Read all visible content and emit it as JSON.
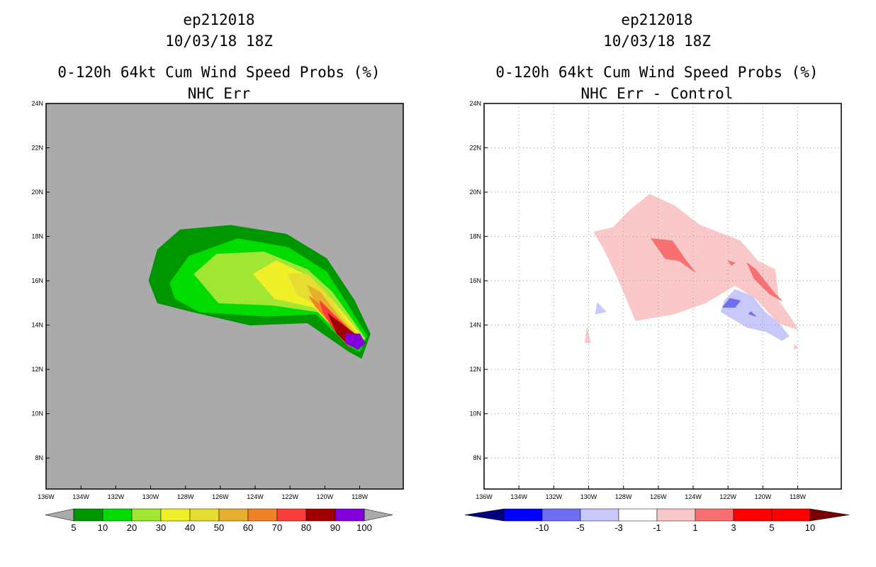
{
  "chart_data": [
    {
      "type": "heatmap",
      "title_lines": [
        "ep212018",
        "10/03/18 18Z",
        "0-120h 64kt Cum Wind Speed Probs (%)",
        "NHC Err"
      ],
      "xlabel": "",
      "ylabel": "",
      "x_range": [
        -136,
        -115.5
      ],
      "y_range": [
        6.6,
        24
      ],
      "x_ticks": [
        "136W",
        "134W",
        "132W",
        "130W",
        "128W",
        "126W",
        "124W",
        "122W",
        "120W",
        "118W"
      ],
      "y_ticks": [
        "8N",
        "10N",
        "12N",
        "14N",
        "16N",
        "18N",
        "20N",
        "22N",
        "24N"
      ],
      "background": "#aaaaaa",
      "grid": false,
      "colorbar": {
        "labels": [
          "5",
          "10",
          "20",
          "30",
          "40",
          "50",
          "60",
          "70",
          "80",
          "90",
          "100"
        ],
        "colors": [
          "#009600",
          "#00dc00",
          "#a0e632",
          "#f0f028",
          "#e6dc32",
          "#e6af2d",
          "#f08228",
          "#fa3c3c",
          "#a00000",
          "#8200dc"
        ],
        "end_color": "#aaaaaa"
      },
      "contours": [
        {
          "level": 5,
          "color": "#009600",
          "points": [
            [
              -130.1,
              16
            ],
            [
              -129.6,
              17.4
            ],
            [
              -128.3,
              18.3
            ],
            [
              -125.4,
              18.5
            ],
            [
              -122.2,
              18.1
            ],
            [
              -119.9,
              17
            ],
            [
              -118.3,
              15.1
            ],
            [
              -117.4,
              13.6
            ],
            [
              -117.9,
              12.5
            ],
            [
              -118.6,
              12.8
            ],
            [
              -121,
              14.1
            ],
            [
              -124.3,
              14
            ],
            [
              -127.6,
              14.6
            ],
            [
              -129.6,
              15
            ]
          ]
        },
        {
          "level": 10,
          "color": "#00dc00",
          "points": [
            [
              -128.9,
              15.9
            ],
            [
              -127.8,
              17.1
            ],
            [
              -125,
              17.9
            ],
            [
              -122.1,
              17.5
            ],
            [
              -119.9,
              16.4
            ],
            [
              -118.6,
              14.8
            ],
            [
              -117.6,
              13.5
            ],
            [
              -118,
              12.8
            ],
            [
              -118.7,
              13.1
            ],
            [
              -120.5,
              14.5
            ],
            [
              -123.4,
              14.4
            ],
            [
              -127.2,
              14.6
            ],
            [
              -128.6,
              15.2
            ]
          ]
        },
        {
          "level": 20,
          "color": "#a0e632",
          "points": [
            [
              -127.5,
              16.3
            ],
            [
              -126.2,
              17.2
            ],
            [
              -123.5,
              17.3
            ],
            [
              -121,
              16.5
            ],
            [
              -119.6,
              15.5
            ],
            [
              -118.4,
              14.2
            ],
            [
              -117.7,
              13.4
            ],
            [
              -118.1,
              13
            ],
            [
              -118.9,
              13.4
            ],
            [
              -120.4,
              14.6
            ],
            [
              -123,
              14.9
            ],
            [
              -126.1,
              15
            ]
          ]
        },
        {
          "level": 30,
          "color": "#f0f028",
          "points": [
            [
              -124.1,
              16.3
            ],
            [
              -122.8,
              16.9
            ],
            [
              -121.2,
              16.3
            ],
            [
              -119.9,
              15.4
            ],
            [
              -118.6,
              14.2
            ],
            [
              -117.8,
              13.4
            ],
            [
              -118.2,
              13.1
            ],
            [
              -119.1,
              13.6
            ],
            [
              -120.6,
              14.8
            ],
            [
              -122.9,
              15.2
            ]
          ]
        },
        {
          "level": 40,
          "color": "#e6dc32",
          "points": [
            [
              -122.1,
              16.3
            ],
            [
              -121,
              16.3
            ],
            [
              -120,
              15.5
            ],
            [
              -118.8,
              14.2
            ],
            [
              -117.9,
              13.4
            ],
            [
              -118.3,
              13.1
            ],
            [
              -119.2,
              13.7
            ],
            [
              -120.5,
              14.9
            ],
            [
              -121.6,
              15.4
            ]
          ]
        },
        {
          "level": 50,
          "color": "#e6af2d",
          "points": [
            [
              -121,
              15.8
            ],
            [
              -120.3,
              15.5
            ],
            [
              -119.1,
              14.3
            ],
            [
              -118,
              13.4
            ],
            [
              -118.4,
              13.2
            ],
            [
              -119.3,
              13.8
            ],
            [
              -120.4,
              14.8
            ]
          ]
        },
        {
          "level": 60,
          "color": "#f08228",
          "points": [
            [
              -120.9,
              15.3
            ],
            [
              -119.4,
              14.4
            ],
            [
              -118.1,
              13.4
            ],
            [
              -118.6,
              13.2
            ],
            [
              -119.6,
              14
            ],
            [
              -120.5,
              14.8
            ]
          ]
        },
        {
          "level": 70,
          "color": "#fa3c3c",
          "points": [
            [
              -120.3,
              15.1
            ],
            [
              -119.4,
              14.4
            ],
            [
              -118.2,
              13.5
            ],
            [
              -118.6,
              13
            ],
            [
              -119.5,
              13.8
            ],
            [
              -120.1,
              14.6
            ]
          ]
        },
        {
          "level": 80,
          "color": "#a00000",
          "points": [
            [
              -119.8,
              14.5
            ],
            [
              -118.3,
              13.6
            ],
            [
              -117.9,
              13.2
            ],
            [
              -118.6,
              13.1
            ],
            [
              -119.3,
              13.6
            ]
          ]
        },
        {
          "level": 90,
          "color": "#8200dc",
          "points": [
            [
              -118.8,
              13.6
            ],
            [
              -118,
              13.6
            ],
            [
              -117.7,
              13.2
            ],
            [
              -118.1,
              12.9
            ],
            [
              -118.8,
              13.2
            ]
          ]
        }
      ]
    },
    {
      "type": "heatmap",
      "title_lines": [
        "ep212018",
        "10/03/18 18Z",
        "0-120h 64kt Cum Wind Speed Probs (%)",
        "NHC Err - Control"
      ],
      "xlabel": "",
      "ylabel": "",
      "x_range": [
        -136,
        -115.5
      ],
      "y_range": [
        6.6,
        24
      ],
      "x_ticks": [
        "136W",
        "134W",
        "132W",
        "130W",
        "128W",
        "126W",
        "124W",
        "122W",
        "120W",
        "118W"
      ],
      "y_ticks": [
        "8N",
        "10N",
        "12N",
        "14N",
        "16N",
        "18N",
        "20N",
        "22N",
        "24N"
      ],
      "background": "#ffffff",
      "grid": true,
      "colorbar": {
        "labels": [
          "-10",
          "-5",
          "-3",
          "-1",
          "1",
          "3",
          "5",
          "10"
        ],
        "colors": [
          "#0000c8",
          "#0000ff",
          "#6e6ef0",
          "#c8c8fa",
          "#ffffff",
          "#fac8c8",
          "#f87070",
          "#ff0000",
          "#780000"
        ],
        "end_color_low": "#00007e",
        "end_color_high": "#780000"
      },
      "contours": [
        {
          "level": 1,
          "color": "#fac8c8",
          "points": [
            [
              -129.7,
              18.2
            ],
            [
              -128.6,
              18.4
            ],
            [
              -127.6,
              19.2
            ],
            [
              -126.5,
              19.9
            ],
            [
              -125.1,
              19.4
            ],
            [
              -123.6,
              18.5
            ],
            [
              -121.3,
              17.8
            ],
            [
              -120.3,
              16.9
            ],
            [
              -119.3,
              16.5
            ],
            [
              -119.1,
              15.1
            ],
            [
              -118.3,
              14.2
            ],
            [
              -118,
              13.8
            ],
            [
              -119.1,
              14.1
            ],
            [
              -120.4,
              15.2
            ],
            [
              -121.6,
              15.8
            ],
            [
              -123.3,
              15
            ],
            [
              -125.1,
              14.5
            ],
            [
              -127.3,
              14.2
            ],
            [
              -128.2,
              15.9
            ],
            [
              -129.1,
              17.4
            ]
          ]
        },
        {
          "level": 1,
          "color": "#fac8c8",
          "points": [
            [
              -130.1,
              13.9
            ],
            [
              -129.9,
              13.2
            ],
            [
              -130.2,
              13.2
            ]
          ]
        },
        {
          "level": 1,
          "color": "#fac8c8",
          "points": [
            [
              -118.2,
              13.1
            ],
            [
              -118,
              13
            ],
            [
              -118.2,
              12.9
            ]
          ]
        },
        {
          "level": 3,
          "color": "#f87070",
          "points": [
            [
              -126.4,
              17.9
            ],
            [
              -125.2,
              17.8
            ],
            [
              -124.4,
              16.9
            ],
            [
              -123.9,
              16.4
            ],
            [
              -124.8,
              16.9
            ],
            [
              -125.6,
              17
            ]
          ]
        },
        {
          "level": 3,
          "color": "#f87070",
          "points": [
            [
              -120.9,
              16.8
            ],
            [
              -120.4,
              16.5
            ],
            [
              -119.9,
              16
            ],
            [
              -119.3,
              15.4
            ],
            [
              -118.9,
              15.1
            ],
            [
              -119.6,
              15.4
            ],
            [
              -120.5,
              16.1
            ]
          ]
        },
        {
          "level": 3,
          "color": "#f87070",
          "points": [
            [
              -122,
              16.9
            ],
            [
              -121.6,
              16.8
            ],
            [
              -121.8,
              16.7
            ]
          ]
        },
        {
          "level": -1,
          "color": "#c8c8fa",
          "points": [
            [
              -121.6,
              15.6
            ],
            [
              -120.6,
              15.3
            ],
            [
              -119.9,
              14.6
            ],
            [
              -119.1,
              14.1
            ],
            [
              -118.5,
              13.5
            ],
            [
              -118.9,
              13.3
            ],
            [
              -119.8,
              13.7
            ],
            [
              -120.9,
              13.9
            ],
            [
              -122.4,
              14.6
            ],
            [
              -122.2,
              15.1
            ]
          ]
        },
        {
          "level": -1,
          "color": "#c8c8fa",
          "points": [
            [
              -129.5,
              15
            ],
            [
              -129,
              14.6
            ],
            [
              -129.6,
              14.5
            ]
          ]
        },
        {
          "level": -3,
          "color": "#6e6ef0",
          "points": [
            [
              -121.9,
              15.2
            ],
            [
              -121.3,
              15.1
            ],
            [
              -121.6,
              14.8
            ],
            [
              -122.3,
              14.8
            ]
          ]
        },
        {
          "level": -3,
          "color": "#6e6ef0",
          "points": [
            [
              -120.7,
              14.6
            ],
            [
              -120.4,
              14.4
            ],
            [
              -120.8,
              14.5
            ]
          ]
        }
      ]
    }
  ]
}
